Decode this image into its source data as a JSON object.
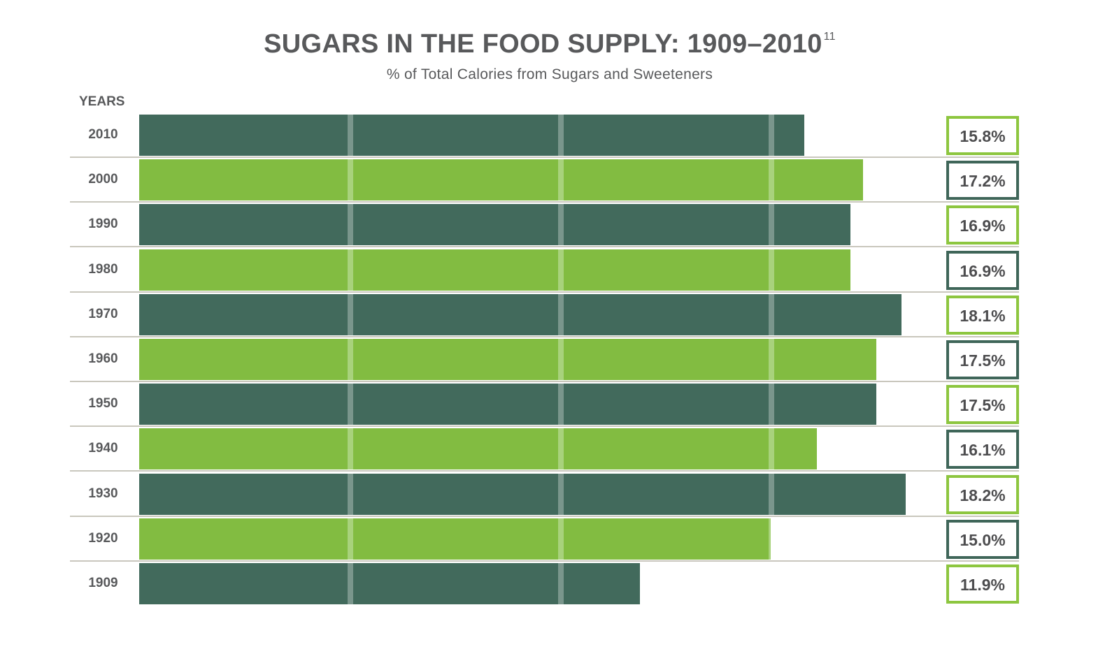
{
  "title": "SUGARS IN THE FOOD SUPPLY: 1909–2010",
  "title_footnote": "11",
  "subtitle": "% of Total Calories from Sugars and Sweeteners",
  "colors": {
    "dark": "#426a5c",
    "light": "#82bc41",
    "dark_stripe": "#7a968c",
    "light_stripe": "#a8d27c",
    "dark_border": "#3f6659",
    "light_border": "#8dc63f",
    "separator": "#c9c7bd"
  },
  "chart_data": {
    "type": "bar",
    "orientation": "horizontal",
    "title": "SUGARS IN THE FOOD SUPPLY: 1909–2010",
    "subtitle": "% of Total Calories from Sugars and Sweeteners",
    "ylabel": "YEARS",
    "categories": [
      "2010",
      "2000",
      "1990",
      "1980",
      "1970",
      "1960",
      "1950",
      "1940",
      "1930",
      "1920",
      "1909"
    ],
    "values": [
      15.8,
      17.2,
      16.9,
      16.9,
      18.1,
      17.5,
      17.5,
      16.1,
      18.2,
      15.0,
      11.9
    ],
    "labels": [
      "15.8%",
      "17.2%",
      "16.9%",
      "16.9%",
      "18.1%",
      "17.5%",
      "17.5%",
      "16.1%",
      "18.2%",
      "15.0%",
      "11.9%"
    ],
    "xlim": [
      0,
      20
    ],
    "gridlines": [
      5,
      10,
      15
    ],
    "grid": true,
    "legend": "none"
  }
}
